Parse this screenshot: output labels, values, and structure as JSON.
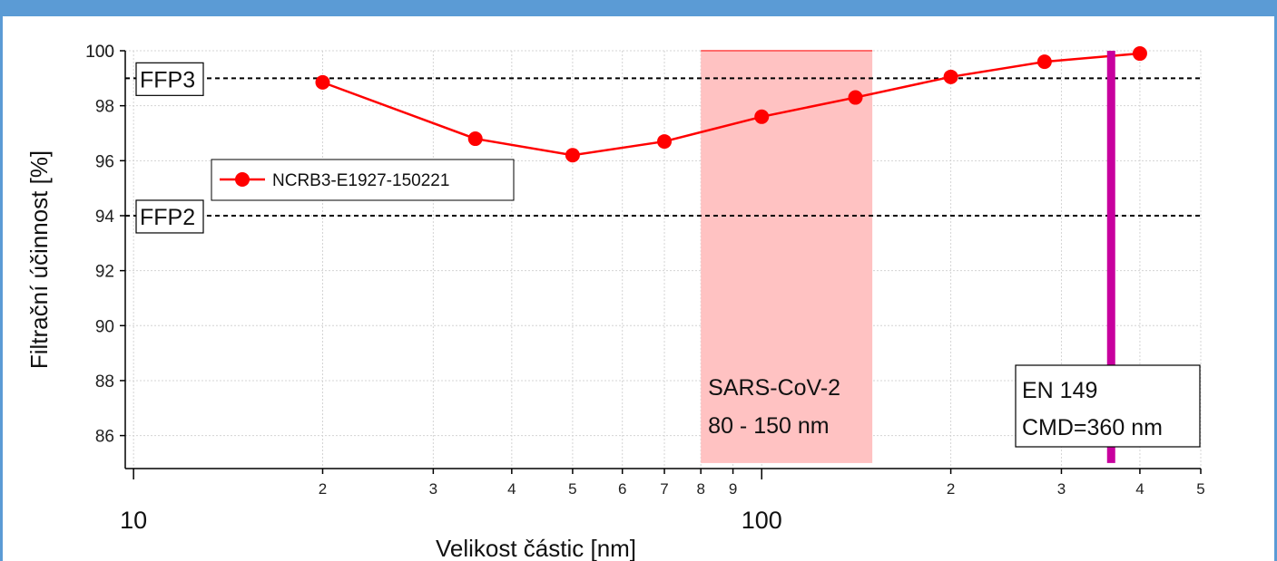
{
  "header": {
    "title": ""
  },
  "colors": {
    "series": "#ff0000",
    "band": "#ffc2c2",
    "cmd_line": "#c8009e",
    "ref_line": "#000000",
    "header": "#5b9bd5"
  },
  "chart_data": {
    "type": "line",
    "xscale": "log",
    "xlim": [
      9.7,
      500
    ],
    "ylim": [
      84.8,
      100
    ],
    "xlabel": "Velikost částic [nm]",
    "ylabel": "Filtrační účinnost [%]",
    "grid": true,
    "legend_placement": "upper-left",
    "yticks": [
      86,
      88,
      90,
      92,
      94,
      96,
      98,
      100
    ],
    "xticks_major": [
      {
        "value": 10,
        "label": "10"
      },
      {
        "value": 100,
        "label": "100"
      }
    ],
    "xticks_minor": [
      {
        "value": 20,
        "label": "2"
      },
      {
        "value": 30,
        "label": "3"
      },
      {
        "value": 40,
        "label": "4"
      },
      {
        "value": 50,
        "label": "5"
      },
      {
        "value": 60,
        "label": "6"
      },
      {
        "value": 70,
        "label": "7"
      },
      {
        "value": 80,
        "label": "8"
      },
      {
        "value": 90,
        "label": "9"
      },
      {
        "value": 200,
        "label": "2"
      },
      {
        "value": 300,
        "label": "3"
      },
      {
        "value": 400,
        "label": "4"
      },
      {
        "value": 500,
        "label": "5"
      }
    ],
    "series": [
      {
        "name": "NCRB3-E1927-150221",
        "x": [
          20,
          35,
          50,
          70,
          100,
          141,
          200,
          282,
          400
        ],
        "y": [
          98.85,
          96.8,
          96.2,
          96.7,
          97.6,
          98.3,
          99.05,
          99.6,
          99.9
        ]
      }
    ],
    "reference_lines": [
      {
        "label": "FFP3",
        "y": 99
      },
      {
        "label": "FFP2",
        "y": 94
      }
    ],
    "band": {
      "x_from": 80,
      "x_to": 150,
      "y_from": 85,
      "y_to": 100,
      "label_line1": "SARS-CoV-2",
      "label_line2": "80 - 150 nm"
    },
    "vertical_marker": {
      "x": 360,
      "y_from": 85,
      "y_to": 100,
      "label_line1": "EN 149",
      "label_line2": "CMD=360 nm"
    }
  }
}
